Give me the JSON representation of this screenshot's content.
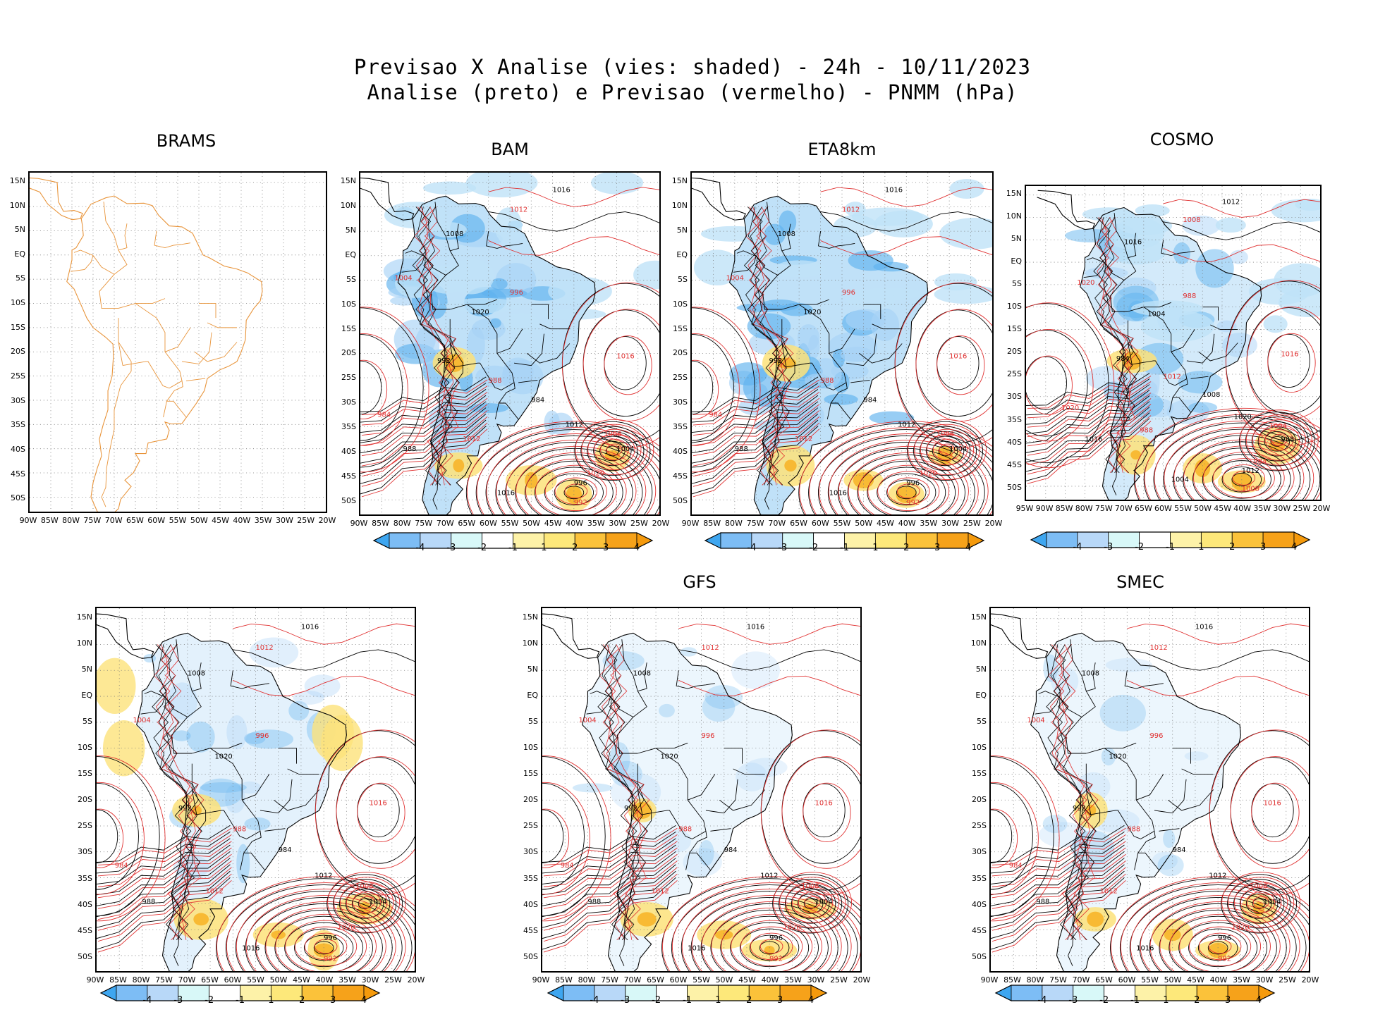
{
  "header": {
    "line1": "Previsao X Analise (vies: shaded) - 24h - 10/11/2023",
    "line2": "Analise (preto) e Previsao (vermelho) - PNMM (hPa)"
  },
  "lat_ticks": [
    "15N",
    "10N",
    "5N",
    "EQ",
    "5S",
    "10S",
    "15S",
    "20S",
    "25S",
    "30S",
    "35S",
    "40S",
    "45S",
    "50S"
  ],
  "lon_ticks_90_20": [
    "90W",
    "85W",
    "80W",
    "75W",
    "70W",
    "65W",
    "60W",
    "55W",
    "50W",
    "45W",
    "40W",
    "35W",
    "30W",
    "25W",
    "20W"
  ],
  "lon_ticks_95_20": [
    "95W",
    "90W",
    "85W",
    "80W",
    "75W",
    "70W",
    "65W",
    "60W",
    "55W",
    "50W",
    "45W",
    "40W",
    "35W",
    "30W",
    "25W",
    "20W"
  ],
  "colorbar_labels": [
    "-4",
    "-3",
    "-2",
    "-1",
    "1",
    "2",
    "3",
    "4"
  ],
  "colorbar_colors": [
    "#3ea6f0",
    "#7dbdf5",
    "#b8d8f8",
    "#d8f8f8",
    "#ffffff",
    "#fdf2a8",
    "#fde87a",
    "#fbc23a",
    "#f6a21a",
    "#f59a0c"
  ],
  "colors": {
    "analysis_contour": "#000000",
    "forecast_contour": "#e03030",
    "coast_brams": "#e8943a",
    "neg_bias": "#8cc8f2",
    "pos_bias": "#fde27a"
  },
  "panels": [
    {
      "id": "brams",
      "title": "BRAMS",
      "has_colorbar": false,
      "contour_labels": []
    },
    {
      "id": "bam",
      "title": "BAM",
      "has_colorbar": true,
      "contour_labels": [
        "1016",
        "1012",
        "1008",
        "1004",
        "1020",
        "996",
        "992",
        "988",
        "984"
      ]
    },
    {
      "id": "eta8km",
      "title": "ETA8km",
      "has_colorbar": true,
      "contour_labels": [
        "1016",
        "1012",
        "1008",
        "1004",
        "1020",
        "996",
        "992",
        "988",
        "984"
      ]
    },
    {
      "id": "cosmo",
      "title": "COSMO",
      "has_colorbar": true,
      "contour_labels": [
        "1012",
        "1008",
        "1016",
        "1020",
        "1004",
        "988",
        "984"
      ]
    },
    {
      "id": "p5",
      "title": "",
      "has_colorbar": true,
      "contour_labels": [
        "1016",
        "1012",
        "1008",
        "1004",
        "1020",
        "996",
        "992",
        "988",
        "984"
      ]
    },
    {
      "id": "gfs",
      "title": "GFS",
      "has_colorbar": true,
      "contour_labels": [
        "1016",
        "1012",
        "1008",
        "1004",
        "1020",
        "996",
        "992",
        "988",
        "984"
      ]
    },
    {
      "id": "smec",
      "title": "SMEC",
      "has_colorbar": true,
      "contour_labels": [
        "1016",
        "1012",
        "1008",
        "1004",
        "1020",
        "996",
        "992",
        "988",
        "984"
      ]
    }
  ]
}
